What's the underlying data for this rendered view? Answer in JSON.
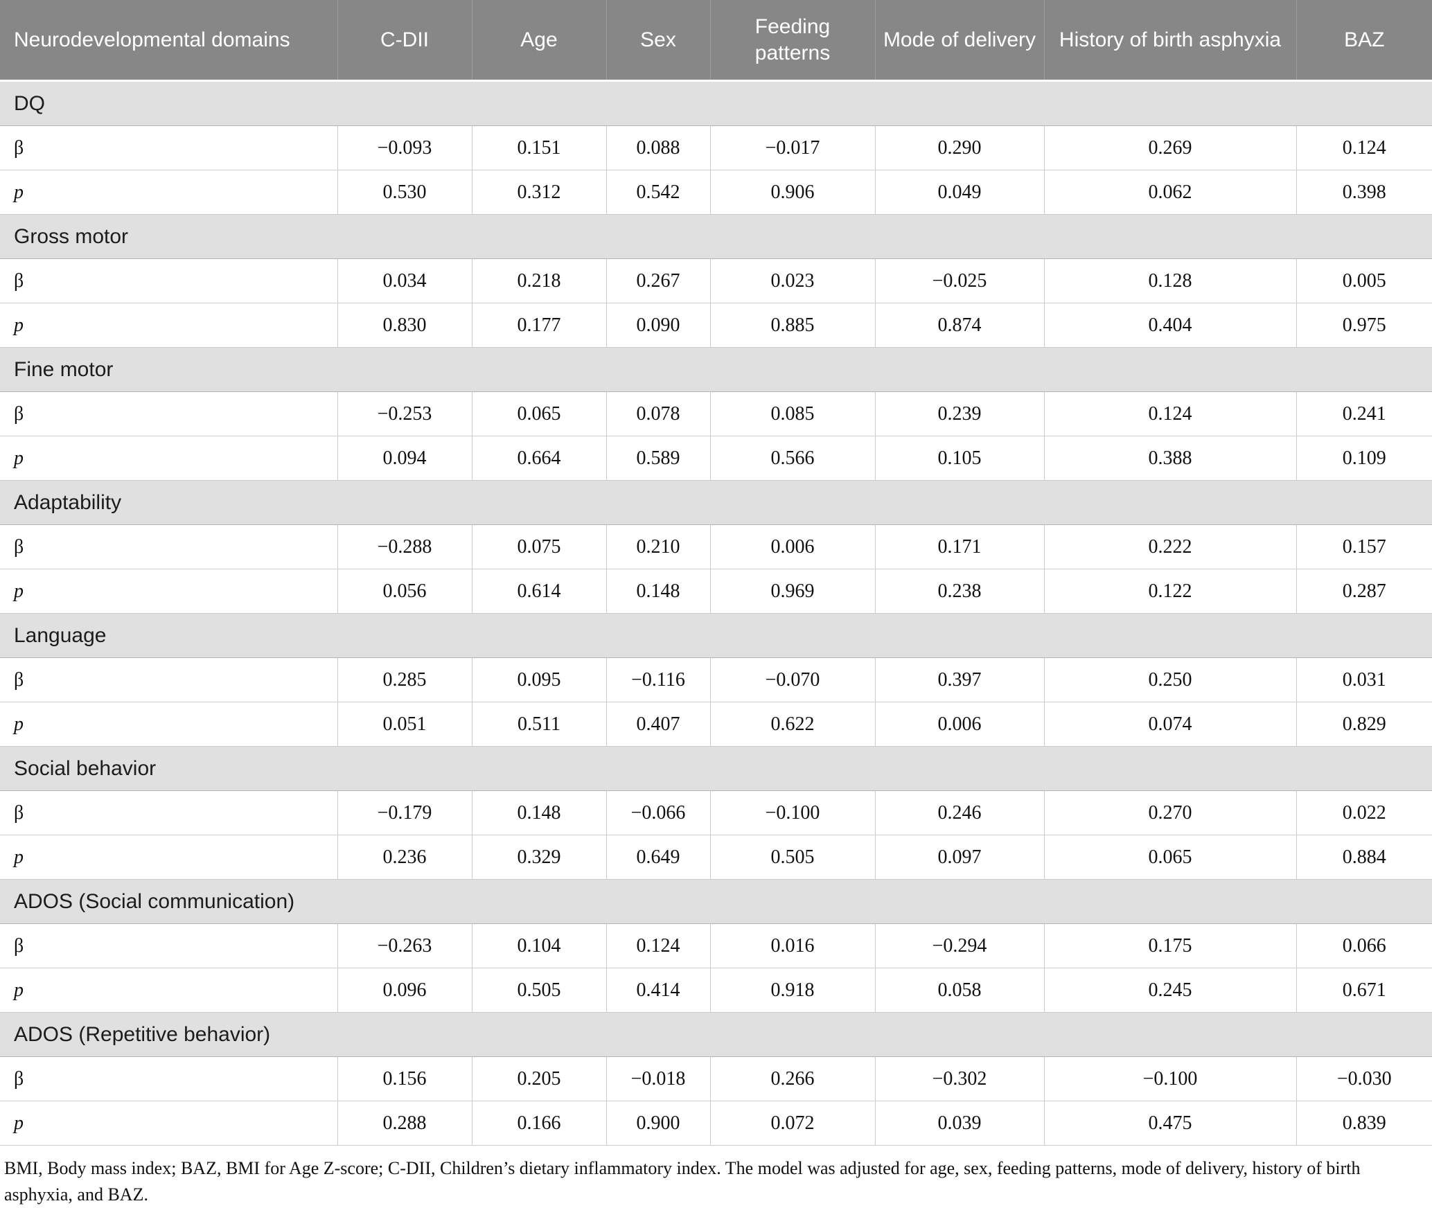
{
  "table": {
    "columns": [
      "Neurodevelopmental domains",
      "C-DII",
      "Age",
      "Sex",
      "Feeding patterns",
      "Mode of delivery",
      "History of birth asphyxia",
      "BAZ"
    ],
    "row_labels": {
      "beta": "β",
      "p": "p"
    },
    "sections": [
      {
        "name": "DQ",
        "beta": [
          "−0.093",
          "0.151",
          "0.088",
          "−0.017",
          "0.290",
          "0.269",
          "0.124"
        ],
        "p": [
          "0.530",
          "0.312",
          "0.542",
          "0.906",
          "0.049",
          "0.062",
          "0.398"
        ]
      },
      {
        "name": "Gross motor",
        "beta": [
          "0.034",
          "0.218",
          "0.267",
          "0.023",
          "−0.025",
          "0.128",
          "0.005"
        ],
        "p": [
          "0.830",
          "0.177",
          "0.090",
          "0.885",
          "0.874",
          "0.404",
          "0.975"
        ]
      },
      {
        "name": "Fine motor",
        "beta": [
          "−0.253",
          "0.065",
          "0.078",
          "0.085",
          "0.239",
          "0.124",
          "0.241"
        ],
        "p": [
          "0.094",
          "0.664",
          "0.589",
          "0.566",
          "0.105",
          "0.388",
          "0.109"
        ]
      },
      {
        "name": "Adaptability",
        "beta": [
          "−0.288",
          "0.075",
          "0.210",
          "0.006",
          "0.171",
          "0.222",
          "0.157"
        ],
        "p": [
          "0.056",
          "0.614",
          "0.148",
          "0.969",
          "0.238",
          "0.122",
          "0.287"
        ]
      },
      {
        "name": "Language",
        "beta": [
          "0.285",
          "0.095",
          "−0.116",
          "−0.070",
          "0.397",
          "0.250",
          "0.031"
        ],
        "p": [
          "0.051",
          "0.511",
          "0.407",
          "0.622",
          "0.006",
          "0.074",
          "0.829"
        ]
      },
      {
        "name": "Social behavior",
        "beta": [
          "−0.179",
          "0.148",
          "−0.066",
          "−0.100",
          "0.246",
          "0.270",
          "0.022"
        ],
        "p": [
          "0.236",
          "0.329",
          "0.649",
          "0.505",
          "0.097",
          "0.065",
          "0.884"
        ]
      },
      {
        "name": "ADOS (Social communication)",
        "beta": [
          "−0.263",
          "0.104",
          "0.124",
          "0.016",
          "−0.294",
          "0.175",
          "0.066"
        ],
        "p": [
          "0.096",
          "0.505",
          "0.414",
          "0.918",
          "0.058",
          "0.245",
          "0.671"
        ]
      },
      {
        "name": "ADOS (Repetitive behavior)",
        "beta": [
          "0.156",
          "0.205",
          "−0.018",
          "0.266",
          "−0.302",
          "−0.100",
          "−0.030"
        ],
        "p": [
          "0.288",
          "0.166",
          "0.900",
          "0.072",
          "0.039",
          "0.475",
          "0.839"
        ]
      }
    ],
    "footnote": "BMI, Body mass index; BAZ, BMI for Age Z-score; C-DII, Children’s dietary inflammatory index. The model was adjusted for age, sex, feeding patterns, mode of delivery, history of birth asphyxia, and BAZ."
  },
  "colors": {
    "header_bg": "#878787",
    "header_text": "#ffffff",
    "section_bg": "#e0e0e0",
    "row_border": "#cccccc",
    "text": "#111111"
  }
}
